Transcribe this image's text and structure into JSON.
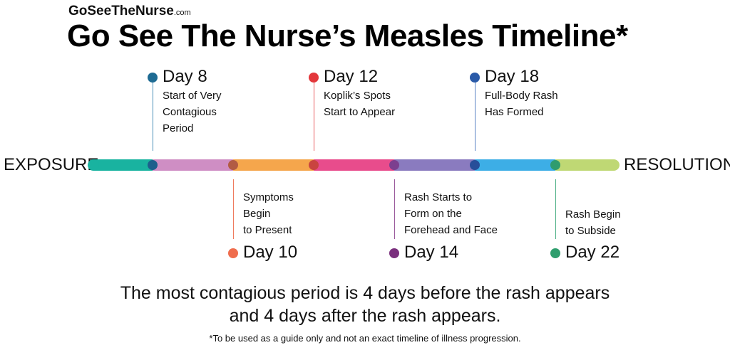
{
  "header": {
    "brand": "GoSeeTheNurse",
    "brand_suffix": ".com",
    "title": "Go See The Nurse’s Measles Timeline*"
  },
  "timeline": {
    "start_label": "EXPOSURE",
    "end_label": "RESOLUTION",
    "segment_colors": [
      "#19b3a0",
      "#cf8ec4",
      "#f5a64c",
      "#e84c8c",
      "#8a7bbf",
      "#3daee6",
      "#bfd874"
    ],
    "marker_dot_colors": [
      "#1d5f8c",
      "#b25b43",
      "#c94440",
      "#7c3f8f",
      "#274e99",
      "#2f9c6e"
    ],
    "events": [
      {
        "day": "Day 8",
        "lines": [
          "Start of Very",
          "Contagious",
          "Period"
        ],
        "color": "#1e6b93",
        "connector": "#4a8fb8"
      },
      {
        "day": "Day 10",
        "lines": [
          "Symptoms",
          "Begin",
          "to Present"
        ],
        "color": "#ef6d4d",
        "connector": "#ef7a5d"
      },
      {
        "day": "Day 12",
        "lines": [
          "Koplik’s Spots",
          "Start to Appear"
        ],
        "color": "#e3373b",
        "connector": "#e85a5d"
      },
      {
        "day": "Day 14",
        "lines": [
          "Rash Starts to",
          "Form on the",
          "Forehead and Face"
        ],
        "color": "#7a2f7d",
        "connector": "#9a5a9c"
      },
      {
        "day": "Day 18",
        "lines": [
          "Full-Body Rash",
          "Has Formed"
        ],
        "color": "#2a5aa8",
        "connector": "#5a83c4"
      },
      {
        "day": "Day 22",
        "lines": [
          "Rash Begin",
          "to Subside"
        ],
        "color": "#2f9e6e",
        "connector": "#4fb086"
      }
    ]
  },
  "summary": {
    "line1": "The most contagious period is 4 days before the rash appears",
    "line2": "and 4 days after the rash appears."
  },
  "footnote": "*To be used as a guide only and not an exact timeline of illness progression."
}
